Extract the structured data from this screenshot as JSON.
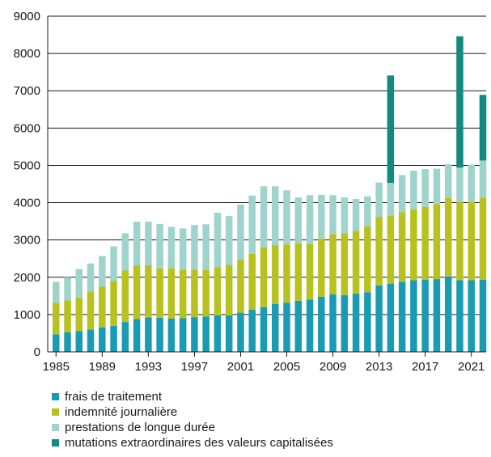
{
  "chart_data": {
    "type": "bar",
    "stacked": true,
    "x": [
      1985,
      1986,
      1987,
      1988,
      1989,
      1990,
      1991,
      1992,
      1993,
      1994,
      1995,
      1996,
      1997,
      1998,
      1999,
      2000,
      2001,
      2002,
      2003,
      2004,
      2005,
      2006,
      2007,
      2008,
      2009,
      2010,
      2011,
      2012,
      2013,
      2014,
      2015,
      2016,
      2017,
      2018,
      2019,
      2020,
      2021,
      2022
    ],
    "x_tick_labels": [
      "1985",
      "1989",
      "1993",
      "1997",
      "2001",
      "2005",
      "2009",
      "2013",
      "2017",
      "2021"
    ],
    "y_ticks": [
      0,
      1000,
      2000,
      3000,
      4000,
      5000,
      6000,
      7000,
      8000,
      9000
    ],
    "ylim": [
      0,
      9000
    ],
    "grid": true,
    "legend_position": "bottom",
    "series": [
      {
        "name": "frais de traitement",
        "color": "#1a9bb4",
        "values": [
          470,
          520,
          560,
          600,
          650,
          700,
          800,
          880,
          920,
          910,
          890,
          900,
          930,
          950,
          980,
          980,
          1050,
          1130,
          1200,
          1280,
          1320,
          1370,
          1400,
          1480,
          1540,
          1520,
          1560,
          1600,
          1780,
          1830,
          1880,
          1920,
          1930,
          1950,
          2020,
          1920,
          1920,
          1930
        ]
      },
      {
        "name": "indemnité journalière",
        "color": "#b8c21e",
        "values": [
          840,
          860,
          890,
          1020,
          1100,
          1200,
          1380,
          1440,
          1400,
          1330,
          1350,
          1300,
          1270,
          1240,
          1290,
          1350,
          1420,
          1500,
          1600,
          1580,
          1560,
          1540,
          1500,
          1560,
          1620,
          1660,
          1680,
          1760,
          1840,
          1830,
          1860,
          1900,
          1960,
          2010,
          2100,
          2090,
          2110,
          2200
        ]
      },
      {
        "name": "prestations de longue durée",
        "color": "#9ed4cb",
        "values": [
          570,
          620,
          770,
          750,
          820,
          930,
          1000,
          1170,
          1170,
          1190,
          1110,
          1110,
          1200,
          1230,
          1460,
          1310,
          1480,
          1560,
          1640,
          1580,
          1450,
          1230,
          1300,
          1170,
          1040,
          960,
          860,
          810,
          920,
          870,
          1000,
          1040,
          1010,
          950,
          910,
          930,
          990,
          1000
        ]
      },
      {
        "name": "mutations extraordinaires des valeurs capitalisées",
        "color": "#128a80",
        "values": [
          0,
          0,
          0,
          0,
          0,
          0,
          0,
          0,
          0,
          0,
          0,
          0,
          0,
          0,
          0,
          0,
          0,
          0,
          0,
          0,
          0,
          0,
          0,
          0,
          0,
          0,
          0,
          0,
          0,
          2880,
          0,
          0,
          0,
          0,
          0,
          3520,
          0,
          1760
        ]
      }
    ]
  }
}
